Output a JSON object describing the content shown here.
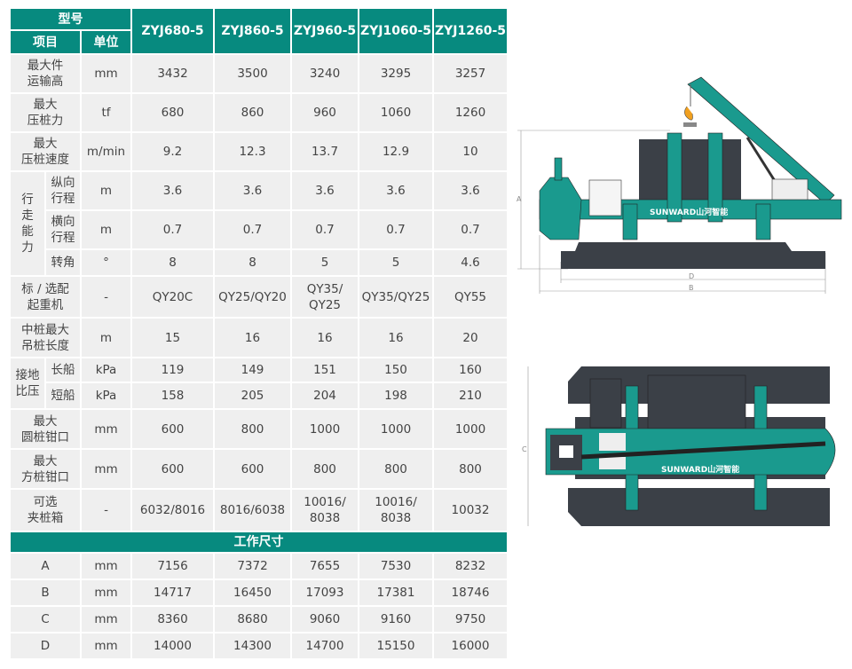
{
  "header": {
    "model_label": "型号",
    "item_label": "项目",
    "unit_label": "单位",
    "models": [
      "ZYJ680-5",
      "ZYJ860-5",
      "ZYJ960-5",
      "ZYJ1060-5",
      "ZYJ1260-5"
    ]
  },
  "rows": [
    {
      "label": "最大件\n运输高",
      "unit": "mm",
      "values": [
        "3432",
        "3500",
        "3240",
        "3295",
        "3257"
      ]
    },
    {
      "label": "最大\n压桩力",
      "unit": "tf",
      "values": [
        "680",
        "860",
        "960",
        "1060",
        "1260"
      ]
    },
    {
      "label": "最大\n压桩速度",
      "unit": "m/min",
      "values": [
        "9.2",
        "12.3",
        "13.7",
        "12.9",
        "10"
      ]
    },
    {
      "group": "行\n走\n能\n力",
      "span": 3,
      "label": "纵向\n行程",
      "unit": "m",
      "values": [
        "3.6",
        "3.6",
        "3.6",
        "3.6",
        "3.6"
      ]
    },
    {
      "label": "横向\n行程",
      "unit": "m",
      "values": [
        "0.7",
        "0.7",
        "0.7",
        "0.7",
        "0.7"
      ],
      "sub": true
    },
    {
      "label": "转角",
      "unit": "°",
      "values": [
        "8",
        "8",
        "5",
        "5",
        "4.6"
      ],
      "sub": true
    },
    {
      "label": "标 / 选配\n起重机",
      "unit": "-",
      "values": [
        "QY20C",
        "QY25/QY20",
        "QY35/\nQY25",
        "QY35/QY25",
        "QY55"
      ]
    },
    {
      "label": "中桩最大\n吊桩长度",
      "unit": "m",
      "values": [
        "15",
        "16",
        "16",
        "16",
        "20"
      ]
    },
    {
      "group": "接地\n比压",
      "span": 2,
      "label": "长船",
      "unit": "kPa",
      "values": [
        "119",
        "149",
        "151",
        "150",
        "160"
      ]
    },
    {
      "label": "短船",
      "unit": "kPa",
      "values": [
        "158",
        "205",
        "204",
        "198",
        "210"
      ],
      "sub": true
    },
    {
      "label": "最大\n圆桩钳口",
      "unit": "mm",
      "values": [
        "600",
        "800",
        "1000",
        "1000",
        "1000"
      ]
    },
    {
      "label": "最大\n方桩钳口",
      "unit": "mm",
      "values": [
        "600",
        "600",
        "800",
        "800",
        "800"
      ]
    },
    {
      "label": "可选\n夹桩箱",
      "unit": "-",
      "values": [
        "6032/8016",
        "8016/6038",
        "10016/\n8038",
        "10016/\n8038",
        "10032"
      ]
    }
  ],
  "dims_section": "工作尺寸",
  "dims": [
    {
      "label": "A",
      "unit": "mm",
      "values": [
        "7156",
        "7372",
        "7655",
        "7530",
        "8232"
      ]
    },
    {
      "label": "B",
      "unit": "mm",
      "values": [
        "14717",
        "16450",
        "17093",
        "17381",
        "18746"
      ]
    },
    {
      "label": "C",
      "unit": "mm",
      "values": [
        "8360",
        "8680",
        "9060",
        "9160",
        "9750"
      ]
    },
    {
      "label": "D",
      "unit": "mm",
      "values": [
        "14000",
        "14300",
        "14700",
        "15150",
        "16000"
      ]
    }
  ],
  "drawings": {
    "logo": "SUNWARD山河智能",
    "dim_a": "A",
    "dim_b": "B",
    "dim_c": "C",
    "dim_d": "D"
  },
  "colors": {
    "header": "#078a7f",
    "cell": "#efefef",
    "machine_teal": "#1a9a8e",
    "machine_dark": "#3b4047",
    "hook": "#f0a020"
  }
}
